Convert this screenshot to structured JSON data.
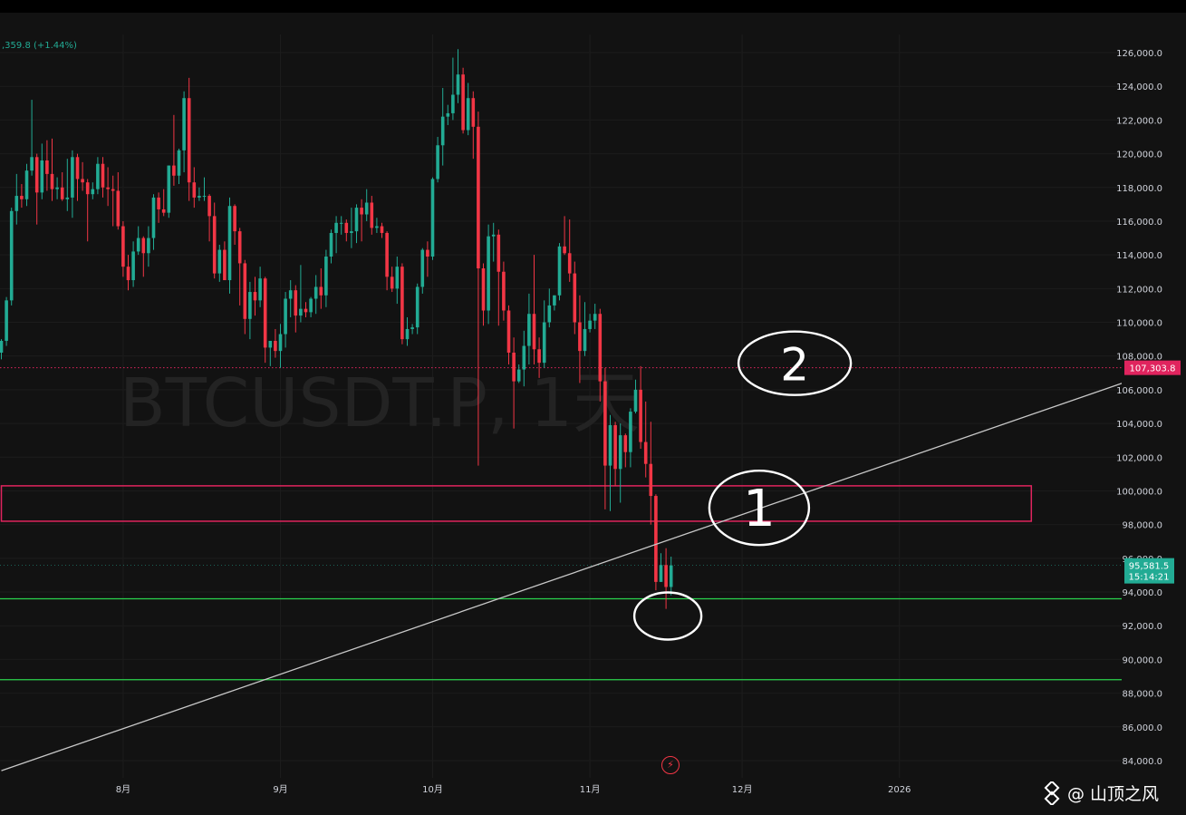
{
  "header": {
    "change_text": ",359.8 (+1.44%)"
  },
  "watermark": {
    "symbol": "BTCUSDT.P, 1天",
    "author": "@ 山顶之风",
    "logo_icon": "diamond-logo-icon"
  },
  "bolt_icon": "lightning-icon",
  "colors": {
    "up": "#22ab94",
    "down": "#f23645",
    "zone": "#e0245e",
    "support": "#2bd34d",
    "trend": "#c8c8c8",
    "grid": "#1c1c1c",
    "axis_text": "#d1d4dc"
  },
  "chart_data": {
    "type": "candlestick",
    "symbol": "BTCUSDT.P",
    "interval": "1天",
    "ylim": [
      83000,
      127000
    ],
    "y_ticks": [
      84000,
      86000,
      88000,
      90000,
      92000,
      94000,
      96000,
      98000,
      100000,
      102000,
      104000,
      106000,
      108000,
      110000,
      112000,
      114000,
      116000,
      118000,
      120000,
      122000,
      124000,
      126000
    ],
    "y_tick_labels": [
      "84,000.0",
      "86,000.0",
      "88,000.0",
      "90,000.0",
      "92,000.0",
      "94,000.0",
      "96,000.0",
      "98,000.0",
      "100,000.0",
      "102,000.0",
      "104,000.0",
      "106,000.0",
      "108,000.0",
      "110,000.0",
      "112,000.0",
      "114,000.0",
      "116,000.0",
      "118,000.0",
      "120,000.0",
      "122,000.0",
      "124,000.0",
      "126,000.0"
    ],
    "x_ticks": [
      {
        "date": "2025-08-01",
        "label": "8月"
      },
      {
        "date": "2025-09-01",
        "label": "9月"
      },
      {
        "date": "2025-10-01",
        "label": "10月"
      },
      {
        "date": "2025-11-01",
        "label": "11月"
      },
      {
        "date": "2025-12-01",
        "label": "12月"
      },
      {
        "date": "2026-01-01",
        "label": "2026"
      }
    ],
    "xlim": [
      "2025-07-08",
      "2026-02-16"
    ],
    "price_lines": [
      {
        "price": 107303.8,
        "label": "107,303.8",
        "style": "dotted",
        "color": "#e0245e"
      }
    ],
    "last_price": {
      "price": 95581.5,
      "label": "95,581.5",
      "countdown": "15:14:21"
    },
    "resistance_zone": {
      "from": "2025-07-08",
      "to": "2026-01-27",
      "low": 98200,
      "high": 100300
    },
    "support_lines": [
      93600,
      88800
    ],
    "trendline": [
      {
        "date": "2025-07-08",
        "price": 83400
      },
      {
        "date": "2026-02-14",
        "price": 106400
      }
    ],
    "annotations": [
      {
        "text": "2",
        "date": "2025-12-06",
        "price": 107300
      },
      {
        "text": "1",
        "date": "2025-11-29",
        "price": 99100
      },
      {
        "text": "",
        "date": "2025-11-16",
        "price": 92900
      }
    ],
    "candles": [
      [
        "2025-07-08",
        108200,
        109000,
        107800,
        108900
      ],
      [
        "2025-07-09",
        108900,
        111500,
        108600,
        111300
      ],
      [
        "2025-07-10",
        111300,
        116800,
        111000,
        116600
      ],
      [
        "2025-07-11",
        116600,
        118800,
        115800,
        117500
      ],
      [
        "2025-07-12",
        117500,
        118200,
        116800,
        117300
      ],
      [
        "2025-07-13",
        117300,
        119400,
        116900,
        119000
      ],
      [
        "2025-07-14",
        119000,
        123200,
        118700,
        119800
      ],
      [
        "2025-07-15",
        119800,
        120000,
        115800,
        117700
      ],
      [
        "2025-07-16",
        117700,
        120600,
        117300,
        119600
      ],
      [
        "2025-07-17",
        119600,
        120800,
        117800,
        118800
      ],
      [
        "2025-07-18",
        118800,
        120900,
        117200,
        117900
      ],
      [
        "2025-07-19",
        117900,
        118600,
        117300,
        118000
      ],
      [
        "2025-07-20",
        118000,
        118900,
        117200,
        117300
      ],
      [
        "2025-07-21",
        117300,
        119700,
        116600,
        117400
      ],
      [
        "2025-07-22",
        117400,
        120200,
        116200,
        119800
      ],
      [
        "2025-07-23",
        119800,
        120000,
        117200,
        118500
      ],
      [
        "2025-07-24",
        118500,
        119500,
        117800,
        118300
      ],
      [
        "2025-07-25",
        118300,
        118500,
        114800,
        117600
      ],
      [
        "2025-07-26",
        117600,
        118300,
        117300,
        117900
      ],
      [
        "2025-07-27",
        117900,
        119800,
        117600,
        119400
      ],
      [
        "2025-07-28",
        119400,
        119800,
        117400,
        118000
      ],
      [
        "2025-07-29",
        118000,
        119200,
        116900,
        117900
      ],
      [
        "2025-07-30",
        117900,
        118700,
        115700,
        117800
      ],
      [
        "2025-07-31",
        117800,
        118900,
        115500,
        115700
      ],
      [
        "2025-08-01",
        115700,
        116000,
        112700,
        113300
      ],
      [
        "2025-08-02",
        113300,
        114000,
        111900,
        112500
      ],
      [
        "2025-08-03",
        112500,
        114800,
        112100,
        114200
      ],
      [
        "2025-08-04",
        114200,
        115700,
        114000,
        115000
      ],
      [
        "2025-08-05",
        115000,
        115100,
        112700,
        114100
      ],
      [
        "2025-08-06",
        114100,
        115700,
        113300,
        115000
      ],
      [
        "2025-08-07",
        115000,
        117600,
        114300,
        117400
      ],
      [
        "2025-08-08",
        117400,
        117700,
        115900,
        116700
      ],
      [
        "2025-08-09",
        116700,
        117900,
        116300,
        116500
      ],
      [
        "2025-08-10",
        116500,
        119300,
        116200,
        119300
      ],
      [
        "2025-08-11",
        119300,
        122300,
        118100,
        118700
      ],
      [
        "2025-08-12",
        118700,
        120300,
        118200,
        120200
      ],
      [
        "2025-08-13",
        120200,
        123700,
        118900,
        123300
      ],
      [
        "2025-08-14",
        123300,
        124500,
        117200,
        118300
      ],
      [
        "2025-08-15",
        118300,
        119200,
        116800,
        117400
      ],
      [
        "2025-08-16",
        117400,
        118000,
        117200,
        117500
      ],
      [
        "2025-08-17",
        117500,
        118600,
        117200,
        117500
      ],
      [
        "2025-08-18",
        117500,
        117600,
        114800,
        116300
      ],
      [
        "2025-08-19",
        116300,
        117100,
        112600,
        112900
      ],
      [
        "2025-08-20",
        112900,
        114600,
        112400,
        114300
      ],
      [
        "2025-08-21",
        114300,
        114800,
        112600,
        112500
      ],
      [
        "2025-08-22",
        112500,
        117400,
        111700,
        116900
      ],
      [
        "2025-08-23",
        116900,
        117000,
        114600,
        115400
      ],
      [
        "2025-08-24",
        115400,
        115600,
        111000,
        113500
      ],
      [
        "2025-08-25",
        113500,
        113700,
        109300,
        110200
      ],
      [
        "2025-08-26",
        110200,
        112400,
        109000,
        111800
      ],
      [
        "2025-08-27",
        111800,
        112700,
        110400,
        111300
      ],
      [
        "2025-08-28",
        111300,
        113300,
        110900,
        112600
      ],
      [
        "2025-08-29",
        112600,
        112700,
        107600,
        108500
      ],
      [
        "2025-08-30",
        108500,
        108900,
        107400,
        108900
      ],
      [
        "2025-08-31",
        108900,
        109600,
        107900,
        108300
      ],
      [
        "2025-09-01",
        108300,
        109900,
        107300,
        109300
      ],
      [
        "2025-09-02",
        109300,
        111800,
        108500,
        111400
      ],
      [
        "2025-09-03",
        111400,
        112500,
        110300,
        111900
      ],
      [
        "2025-09-04",
        111900,
        112200,
        109400,
        110400
      ],
      [
        "2025-09-05",
        110400,
        113400,
        110000,
        110800
      ],
      [
        "2025-09-06",
        110800,
        111200,
        110300,
        110600
      ],
      [
        "2025-09-07",
        110600,
        111500,
        110300,
        111400
      ],
      [
        "2025-09-08",
        111400,
        112800,
        110500,
        112100
      ],
      [
        "2025-09-09",
        112100,
        113200,
        110800,
        111600
      ],
      [
        "2025-09-10",
        111600,
        114300,
        110900,
        113900
      ],
      [
        "2025-09-11",
        113900,
        115500,
        113500,
        115300
      ],
      [
        "2025-09-12",
        115300,
        116300,
        114100,
        115900
      ],
      [
        "2025-09-13",
        115900,
        116300,
        115200,
        115900
      ],
      [
        "2025-09-14",
        115900,
        116100,
        114800,
        115300
      ],
      [
        "2025-09-15",
        115300,
        116800,
        114400,
        115400
      ],
      [
        "2025-09-16",
        115400,
        117000,
        114700,
        116800
      ],
      [
        "2025-09-17",
        116800,
        117300,
        114800,
        116400
      ],
      [
        "2025-09-18",
        116400,
        117900,
        116000,
        117100
      ],
      [
        "2025-09-19",
        117100,
        117500,
        115200,
        115600
      ],
      [
        "2025-09-20",
        115600,
        116200,
        115300,
        115700
      ],
      [
        "2025-09-21",
        115700,
        115900,
        115000,
        115300
      ],
      [
        "2025-09-22",
        115300,
        115400,
        111900,
        112700
      ],
      [
        "2025-09-23",
        112700,
        113300,
        111800,
        112000
      ],
      [
        "2025-09-24",
        112000,
        113900,
        111100,
        113300
      ],
      [
        "2025-09-25",
        113300,
        113500,
        108700,
        109000
      ],
      [
        "2025-09-26",
        109000,
        110300,
        108600,
        109600
      ],
      [
        "2025-09-27",
        109600,
        109900,
        109300,
        109700
      ],
      [
        "2025-09-28",
        109700,
        112300,
        109300,
        112100
      ],
      [
        "2025-09-29",
        112100,
        114400,
        111700,
        114300
      ],
      [
        "2025-09-30",
        114300,
        114800,
        112700,
        113900
      ],
      [
        "2025-10-01",
        113900,
        118600,
        113700,
        118500
      ],
      [
        "2025-10-02",
        118500,
        121000,
        118300,
        120500
      ],
      [
        "2025-10-03",
        120500,
        123900,
        119300,
        122200
      ],
      [
        "2025-10-04",
        122200,
        122900,
        121700,
        122400
      ],
      [
        "2025-10-05",
        122400,
        125700,
        122000,
        123500
      ],
      [
        "2025-10-06",
        123500,
        126200,
        123000,
        124700
      ],
      [
        "2025-10-07",
        124700,
        125100,
        121200,
        121400
      ],
      [
        "2025-10-08",
        121400,
        124200,
        121100,
        123300
      ],
      [
        "2025-10-09",
        123300,
        123700,
        119700,
        121600
      ],
      [
        "2025-10-10",
        121600,
        122500,
        101500,
        113200
      ],
      [
        "2025-10-11",
        113200,
        113500,
        109800,
        110700
      ],
      [
        "2025-10-12",
        110700,
        115800,
        109900,
        115100
      ],
      [
        "2025-10-13",
        115100,
        115900,
        113600,
        115200
      ],
      [
        "2025-10-14",
        115200,
        115500,
        109800,
        113000
      ],
      [
        "2025-10-15",
        113000,
        113600,
        110100,
        110700
      ],
      [
        "2025-10-16",
        110700,
        111000,
        107500,
        108200
      ],
      [
        "2025-10-17",
        108200,
        109100,
        103700,
        106500
      ],
      [
        "2025-10-18",
        106500,
        107500,
        106400,
        107200
      ],
      [
        "2025-10-19",
        107200,
        109500,
        106200,
        108600
      ],
      [
        "2025-10-20",
        108600,
        111700,
        107500,
        110500
      ],
      [
        "2025-10-21",
        110500,
        114000,
        107500,
        108400
      ],
      [
        "2025-10-22",
        108400,
        109100,
        106700,
        107600
      ],
      [
        "2025-10-23",
        107600,
        111300,
        107300,
        110000
      ],
      [
        "2025-10-24",
        110000,
        112000,
        109700,
        111000
      ],
      [
        "2025-10-25",
        111000,
        111600,
        110700,
        111600
      ],
      [
        "2025-10-26",
        111600,
        114700,
        111300,
        114500
      ],
      [
        "2025-10-27",
        114500,
        116300,
        114000,
        114100
      ],
      [
        "2025-10-28",
        114100,
        116100,
        112400,
        112900
      ],
      [
        "2025-10-29",
        112900,
        113600,
        109300,
        110000
      ],
      [
        "2025-10-30",
        110000,
        111600,
        106400,
        108300
      ],
      [
        "2025-10-31",
        108300,
        111200,
        108000,
        109600
      ],
      [
        "2025-11-01",
        109600,
        110500,
        109400,
        110100
      ],
      [
        "2025-11-02",
        110100,
        111100,
        109600,
        110500
      ],
      [
        "2025-11-03",
        110500,
        110800,
        105300,
        106500
      ],
      [
        "2025-11-04",
        106500,
        107300,
        98900,
        101500
      ],
      [
        "2025-11-05",
        101500,
        104500,
        98800,
        103900
      ],
      [
        "2025-11-06",
        103900,
        104100,
        100300,
        101300
      ],
      [
        "2025-11-07",
        101300,
        104000,
        99300,
        103300
      ],
      [
        "2025-11-08",
        103300,
        103400,
        101400,
        102300
      ],
      [
        "2025-11-09",
        102300,
        104900,
        101400,
        104700
      ],
      [
        "2025-11-10",
        104700,
        106600,
        104600,
        106000
      ],
      [
        "2025-11-11",
        106000,
        107400,
        102500,
        102900
      ],
      [
        "2025-11-12",
        102900,
        105300,
        100800,
        101600
      ],
      [
        "2025-11-13",
        101600,
        104100,
        98000,
        99700
      ],
      [
        "2025-11-14",
        99700,
        99800,
        94100,
        94600
      ],
      [
        "2025-11-15",
        94600,
        96300,
        94600,
        95600
      ],
      [
        "2025-11-16",
        95600,
        96600,
        93000,
        94300
      ],
      [
        "2025-11-17",
        94300,
        96100,
        93800,
        95581.5
      ]
    ]
  }
}
